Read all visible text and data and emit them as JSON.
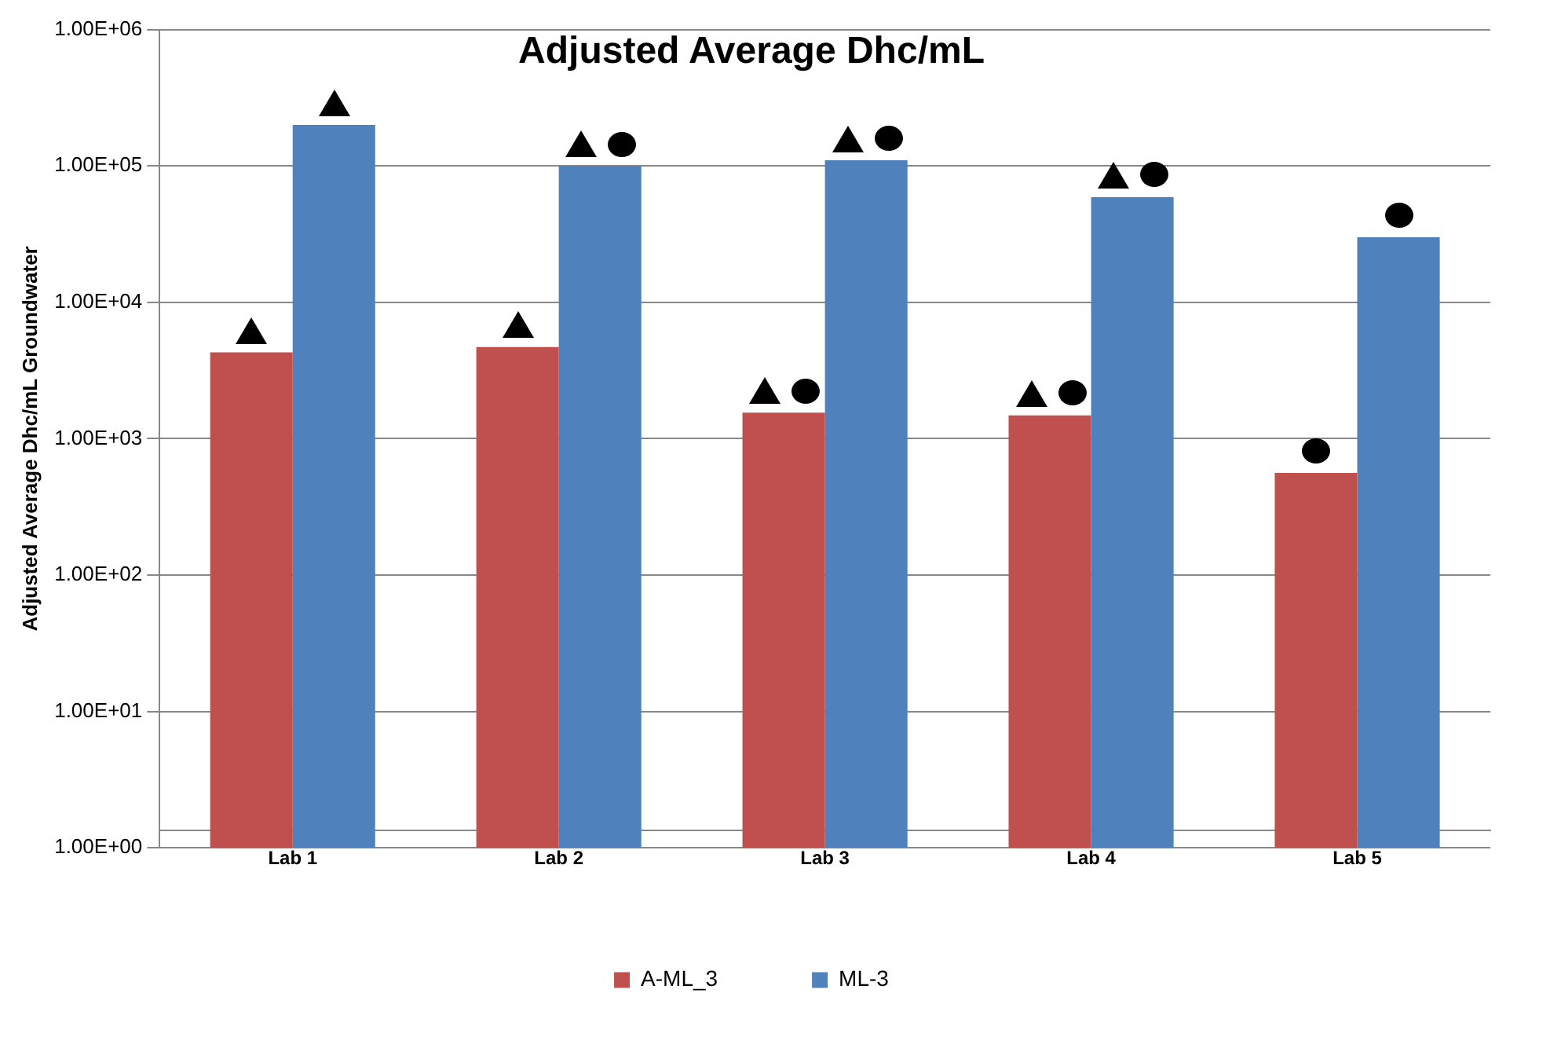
{
  "chart_data": {
    "type": "bar",
    "title": "Adjusted Average Dhc/mL",
    "ylabel": "Adjusted Average Dhc/mL Groundwater",
    "categories": [
      "Lab 1",
      "Lab 2",
      "Lab 3",
      "Lab 4",
      "Lab 5"
    ],
    "series": [
      {
        "name": "A-ML_3",
        "color": "#c0504d",
        "values": [
          4300,
          4700,
          1550,
          1480,
          560
        ]
      },
      {
        "name": "ML-3",
        "color": "#4f81bd",
        "values": [
          200000,
          100000,
          110000,
          59000,
          30000
        ]
      }
    ],
    "log": "y",
    "ylim": [
      1,
      1000000
    ],
    "yticks": [
      {
        "value": 1,
        "label": "1.00E+00"
      },
      {
        "value": 10,
        "label": "1.00E+01"
      },
      {
        "value": 100,
        "label": "1.00E+02"
      },
      {
        "value": 1000,
        "label": "1.00E+03"
      },
      {
        "value": 10000,
        "label": "1.00E+04"
      },
      {
        "value": 100000,
        "label": "1.00E+05"
      },
      {
        "value": 1000000,
        "label": "1.00E+06"
      }
    ],
    "grid": "y",
    "legend": "bottom"
  }
}
